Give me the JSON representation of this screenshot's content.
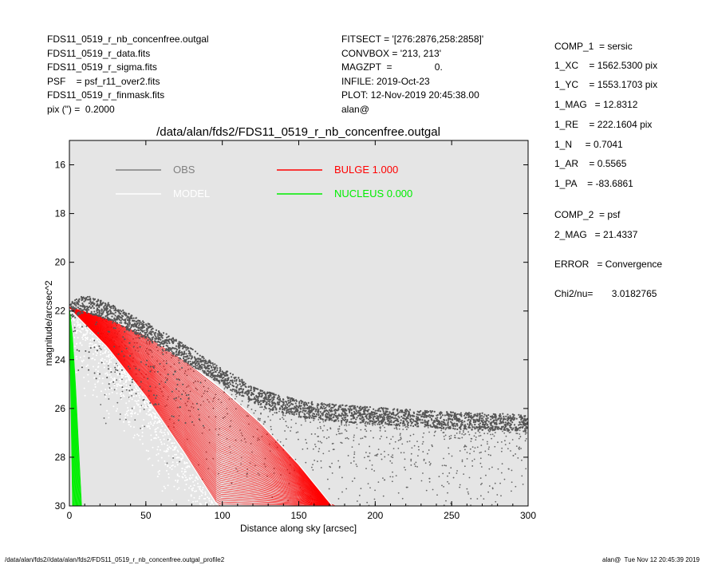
{
  "header_left": [
    "FDS11_0519_r_nb_concenfree.outgal",
    "FDS11_0519_r_data.fits",
    "FDS11_0519_r_sigma.fits",
    "PSF    = psf_r11_over2.fits",
    "FDS11_0519_r_finmask.fits",
    "pix (\") =  0.2000"
  ],
  "header_mid": [
    "FITSECT = '[276:2876,258:2858]'",
    "CONVBOX = '213, 213'",
    "MAGZPT  =                0.",
    "INFILE: 2019-Oct-23",
    "PLOT: 12-Nov-2019 20:45:38.00",
    "alan@"
  ],
  "params": [
    "COMP_1  = sersic",
    "1_XC    = 1562.5300 pix",
    "1_YC    = 1553.1703 pix",
    "1_MAG   = 12.8312",
    "1_RE    = 222.1604 pix",
    "1_N     = 0.7041",
    "1_AR    = 0.5565",
    "1_PA    = -83.6861",
    "COMP_2  = psf",
    "2_MAG   = 21.4337",
    "ERROR   = Convergence",
    "Chi2/nu=       3.0182765"
  ],
  "footer": {
    "left": "/data/alan/fds2//data/alan/fds2/FDS11_0519_r_nb_concenfree.outgal_profile2",
    "right": "alan@  Tue Nov 12 20:45:39 2019"
  },
  "chart_data": {
    "type": "scatter",
    "title": "/data/alan/fds2/FDS11_0519_r_nb_concenfree.outgal",
    "xlabel": "Distance along sky [arcsec]",
    "ylabel": "magnitude/arcsec^2",
    "xlim": [
      0,
      300
    ],
    "ylim": [
      30,
      15
    ],
    "y_inverted": true,
    "xticks": [
      0,
      50,
      100,
      150,
      200,
      250,
      300
    ],
    "yticks": [
      16,
      18,
      20,
      22,
      24,
      26,
      28,
      30
    ],
    "background": "#e5e5e5",
    "grid": false,
    "legend": [
      {
        "label": "OBS",
        "color": "#808080"
      },
      {
        "label": "MODEL",
        "color": "#ffffff"
      },
      {
        "label": "BULGE  1.000",
        "color": "#ff0000"
      },
      {
        "label": "NUCLEUS  0.000",
        "color": "#00ee00"
      }
    ],
    "series": [
      {
        "name": "OBS",
        "color": "#555555",
        "x": [
          0,
          10,
          25,
          50,
          75,
          100,
          125,
          150,
          175,
          200,
          250,
          300
        ],
        "y": [
          22.0,
          21.7,
          22.0,
          22.8,
          23.7,
          24.7,
          25.6,
          26.0,
          26.2,
          26.3,
          26.5,
          26.6
        ]
      },
      {
        "name": "MODEL",
        "color": "#ffffff",
        "x": [
          0,
          25,
          50,
          75,
          95
        ],
        "y": [
          22.0,
          23.6,
          25.6,
          28.0,
          30.0
        ]
      },
      {
        "name": "BULGE  1.000",
        "color": "#ff0000",
        "upper": {
          "x": [
            0,
            25,
            50,
            75,
            100,
            125,
            150,
            172
          ],
          "y": [
            21.8,
            22.3,
            23.0,
            24.0,
            25.2,
            26.6,
            28.3,
            30.0
          ]
        },
        "lower": {
          "x": [
            0,
            25,
            50,
            75,
            97
          ],
          "y": [
            21.9,
            23.5,
            25.5,
            27.8,
            30.0
          ]
        }
      },
      {
        "name": "NUCLEUS  0.000",
        "color": "#00ee00",
        "upper": {
          "x": [
            0,
            2,
            4,
            6,
            8
          ],
          "y": [
            21.9,
            23.0,
            25.0,
            27.5,
            30.0
          ]
        },
        "lower": {
          "x": [
            0,
            1,
            2
          ],
          "y": [
            22.0,
            26.0,
            30.0
          ]
        }
      }
    ]
  }
}
